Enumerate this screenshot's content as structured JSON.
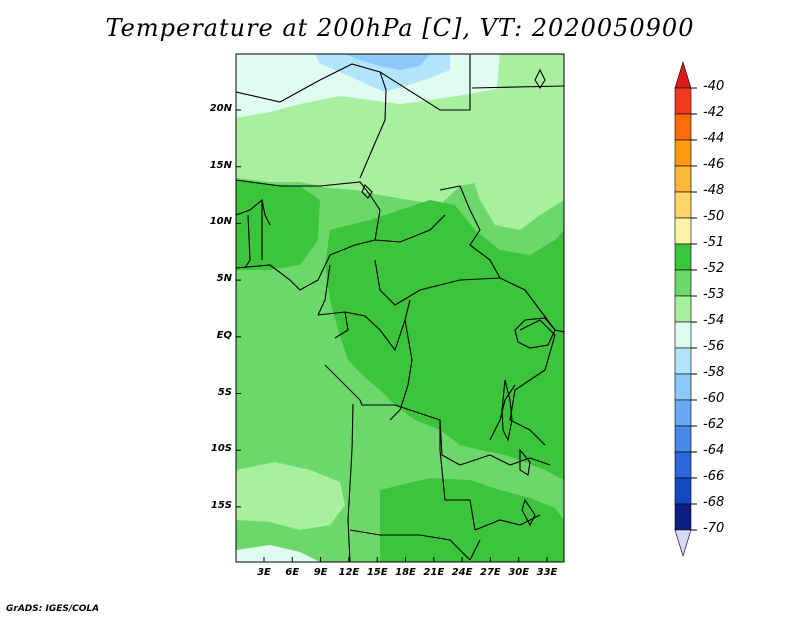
{
  "title": "Temperature at 200hPa [C], VT: 2020050900",
  "credit": "GrADS: IGES/COLA",
  "lat_labels": [
    "20N",
    "15N",
    "10N",
    "5N",
    "EQ",
    "5S",
    "10S",
    "15S"
  ],
  "lon_labels": [
    "3E",
    "6E",
    "9E",
    "12E",
    "15E",
    "18E",
    "21E",
    "24E",
    "27E",
    "30E",
    "33E"
  ],
  "colorbar": {
    "levels": [
      "-40",
      "-42",
      "-44",
      "-46",
      "-48",
      "-50",
      "-51",
      "-52",
      "-53",
      "-54",
      "-56",
      "-58",
      "-60",
      "-62",
      "-64",
      "-66",
      "-68",
      "-70"
    ],
    "colors": [
      "#e31a1c",
      "#f03b20",
      "#fd6a10",
      "#fd9a14",
      "#fdb83c",
      "#fdd568",
      "#fdf3a8",
      "#3cc43c",
      "#6cd86c",
      "#a8f0a0",
      "#e0fcf0",
      "#b2e4fc",
      "#8cc8f8",
      "#6aa8f0",
      "#4a88e8",
      "#2c68dc",
      "#1448c0",
      "#0a2080",
      "#d8d8f8"
    ]
  },
  "map_colors": {
    "minus52": "#3cc43c",
    "minus53": "#6cd86c",
    "minus54": "#a8f0a0",
    "minus56": "#e0fcf0",
    "minus58": "#b2e4fc",
    "minus60": "#8cc8f8"
  }
}
